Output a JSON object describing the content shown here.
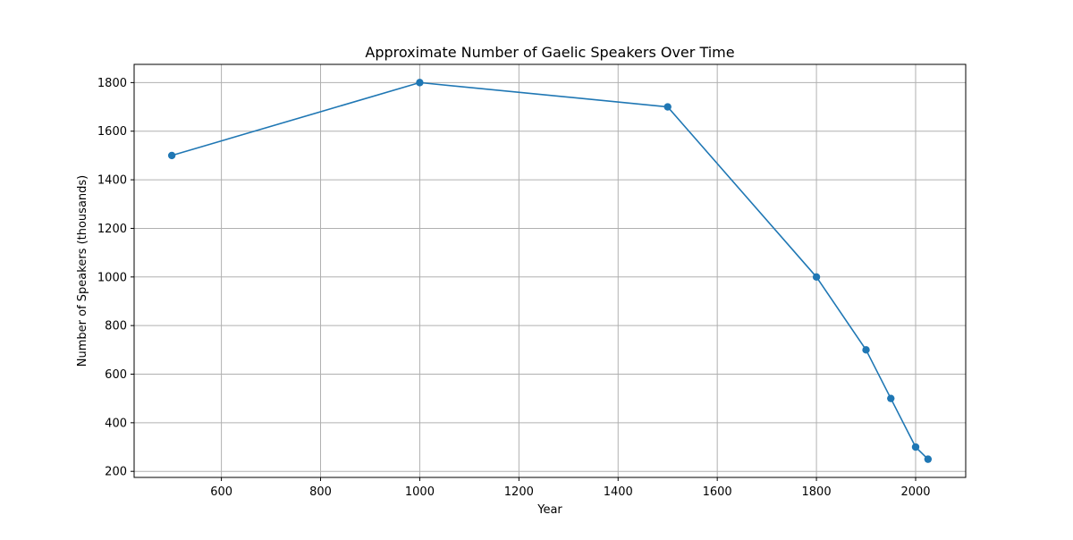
{
  "colors": {
    "line": "#1f77b4",
    "marker": "#1f77b4",
    "grid": "#b0b0b0",
    "axes": "#000000",
    "background": "#ffffff"
  },
  "chart_data": {
    "type": "line",
    "title": "Approximate Number of Gaelic Speakers Over Time",
    "xlabel": "Year",
    "ylabel": "Number of Speakers (thousands)",
    "xlim": [
      424,
      2101
    ],
    "ylim": [
      175,
      1875
    ],
    "xticks": [
      600,
      800,
      1000,
      1200,
      1400,
      1600,
      1800,
      2000
    ],
    "yticks": [
      200,
      400,
      600,
      800,
      1000,
      1200,
      1400,
      1600,
      1800
    ],
    "grid": true,
    "marker": "circle",
    "series": [
      {
        "x": [
          500,
          1000,
          1500,
          1800,
          1900,
          1950,
          2000,
          2025
        ],
        "y": [
          1500,
          1800,
          1700,
          1000,
          700,
          500,
          300,
          250
        ]
      }
    ]
  }
}
